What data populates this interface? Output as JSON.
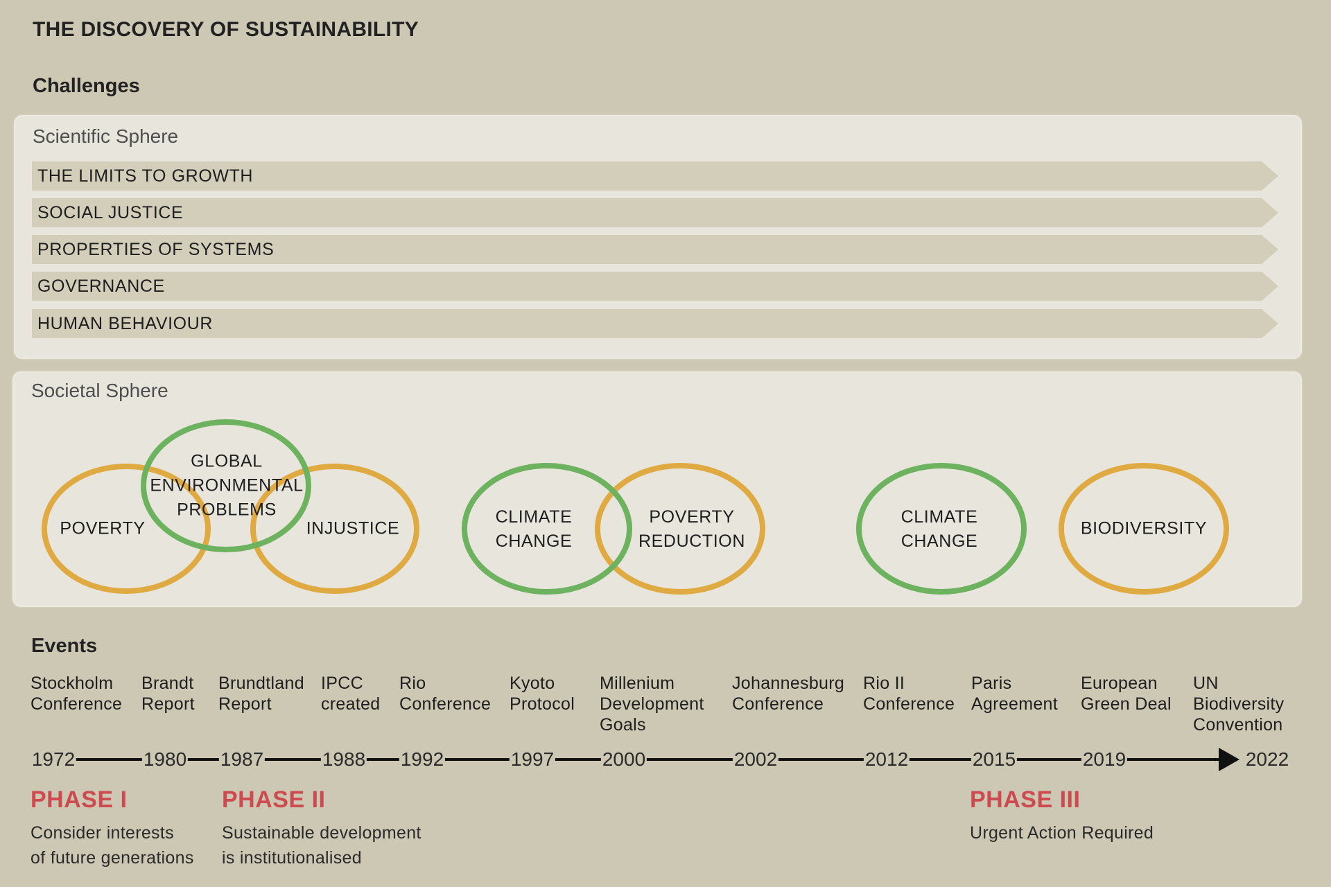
{
  "title": "THE DISCOVERY OF SUSTAINABILITY",
  "challenges": {
    "heading": "Challenges",
    "scientific": {
      "label": "Scientific Sphere",
      "bars": [
        "THE LIMITS TO GROWTH",
        "SOCIAL JUSTICE",
        "PROPERTIES OF SYSTEMS",
        "GOVERNANCE",
        "HUMAN BEHAVIOUR"
      ]
    },
    "societal": {
      "label": "Societal Sphere",
      "topics": {
        "poverty": "POVERTY",
        "global_env": [
          "GLOBAL",
          "ENVIRONMENTAL",
          "PROBLEMS"
        ],
        "injustice": "INJUSTICE",
        "climate_change_1": [
          "CLIMATE",
          "CHANGE"
        ],
        "poverty_reduction": [
          "POVERTY",
          "REDUCTION"
        ],
        "climate_change_2": [
          "CLIMATE",
          "CHANGE"
        ],
        "biodiversity": "BIODIVERSITY"
      }
    }
  },
  "colors": {
    "green_ring": "#6db35f",
    "orange_ring": "#e0aa42",
    "phase_red": "#cc4a50"
  },
  "events": {
    "heading": "Events",
    "items": [
      {
        "lines": [
          "Stockholm",
          "Conference"
        ],
        "year": "1972"
      },
      {
        "lines": [
          "Brandt",
          "Report"
        ],
        "year": "1980"
      },
      {
        "lines": [
          "Brundtland",
          "Report"
        ],
        "year": "1987"
      },
      {
        "lines": [
          "IPCC",
          "created"
        ],
        "year": "1988"
      },
      {
        "lines": [
          "Rio",
          "Conference"
        ],
        "year": "1992"
      },
      {
        "lines": [
          "Kyoto",
          "Protocol"
        ],
        "year": "1997"
      },
      {
        "lines": [
          "Millenium",
          "Development",
          "Goals"
        ],
        "year": "2000"
      },
      {
        "lines": [
          "Johannesburg",
          "Conference"
        ],
        "year": "2002"
      },
      {
        "lines": [
          "Rio II",
          "Conference"
        ],
        "year": "2012"
      },
      {
        "lines": [
          "Paris",
          "Agreement"
        ],
        "year": "2015"
      },
      {
        "lines": [
          "European",
          "Green Deal"
        ],
        "year": "2019"
      },
      {
        "lines": [
          "UN",
          "Biodiversity",
          "Convention"
        ],
        "year": "2022"
      }
    ]
  },
  "phases": [
    {
      "title": "PHASE I",
      "desc": [
        "Consider interests",
        "of future generations"
      ]
    },
    {
      "title": "PHASE II",
      "desc": [
        "Sustainable development",
        "is institutionalised"
      ]
    },
    {
      "title": "PHASE III",
      "desc": [
        "Urgent Action Required"
      ]
    }
  ]
}
